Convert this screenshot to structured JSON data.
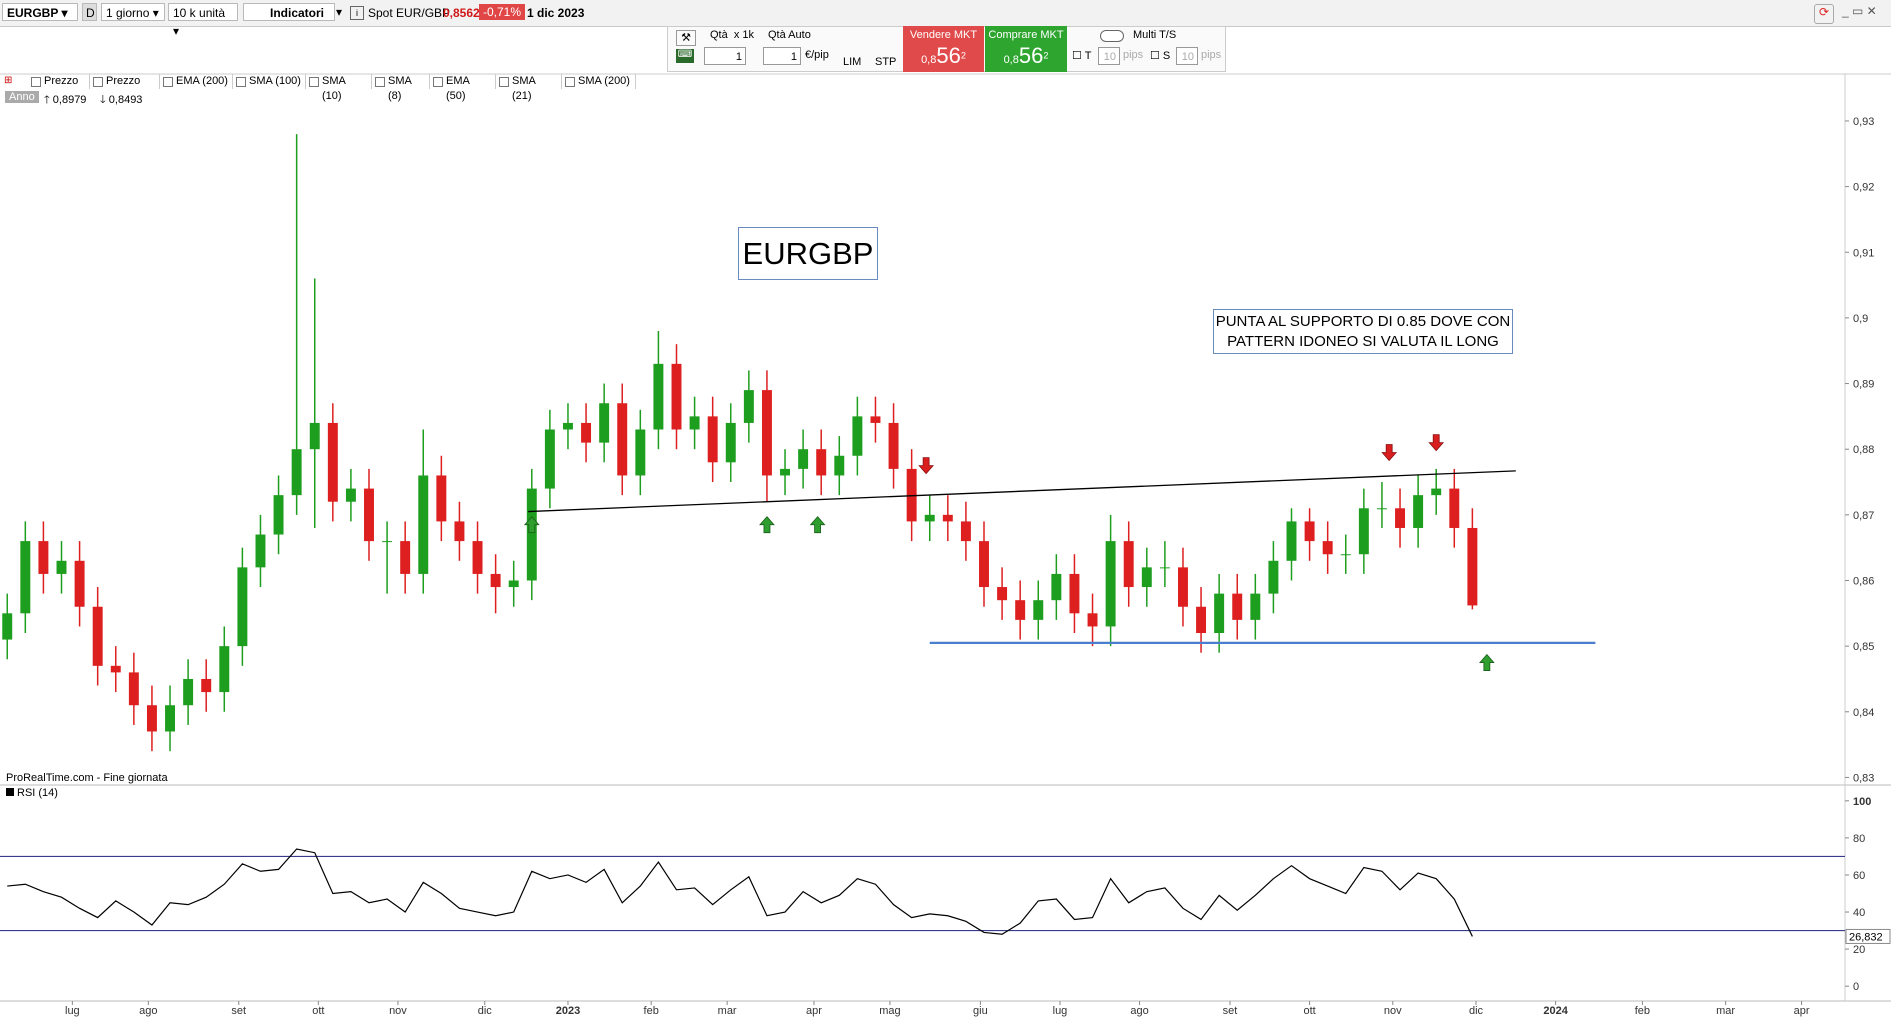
{
  "ui": {
    "symbol": "EURGBP",
    "d": "D",
    "timeframe": "1 giorno",
    "units": "10 k unità",
    "indicators": "Indicatori",
    "spot": "Spot EUR/GBP",
    "spot_price": "0,8562",
    "change": "-0,71%",
    "date": "1 dic 2023",
    "qty": "Qtà",
    "qty_mult": "x 1k",
    "qty_auto": "Qtà Auto",
    "qty_val": "1",
    "qty_auto_val": "1",
    "per_pip": "€/pip",
    "lim": "LIM",
    "stp": "STP",
    "sell": "Vendere MKT",
    "buy": "Comprare MKT",
    "quote_big_prefix": "0,8",
    "quote_big": "56",
    "quote_sup": "2",
    "multi": "Multi T/S",
    "t": "T",
    "s": "S",
    "pips_val": "10",
    "pips": "pips",
    "legend": [
      "Prezzo",
      "Prezzo",
      "EMA (200)",
      "SMA (100)",
      "SMA (10)",
      "SMA (8)",
      "EMA (50)",
      "SMA (21)",
      "SMA (200)"
    ],
    "period": "Anno",
    "high_label": "0,8979",
    "low_label": "0,8493",
    "source": "ProRealTime.com - Fine giornata"
  },
  "chart_data": [
    {
      "type": "candlestick",
      "up_color": "#1e9e1e",
      "down_color": "#dd1f1f",
      "x": [
        2,
        7,
        12,
        17,
        22,
        27,
        32,
        37,
        42,
        47,
        52,
        57,
        62,
        67,
        72,
        77,
        82,
        87,
        92,
        97,
        102,
        107,
        112,
        117,
        122,
        127,
        132,
        137,
        142,
        147,
        152,
        157,
        162,
        167,
        172,
        177,
        182,
        187,
        192,
        197,
        202,
        207,
        212,
        217,
        222,
        227,
        232,
        237,
        242,
        247,
        252,
        257,
        262,
        267,
        272,
        277,
        282,
        287,
        292,
        297,
        302,
        307,
        312,
        317,
        322,
        327,
        332,
        337,
        342,
        347,
        352,
        357,
        362,
        367,
        372,
        377,
        382,
        387,
        392,
        397,
        402,
        407
      ],
      "open": [
        0.851,
        0.855,
        0.866,
        0.861,
        0.863,
        0.856,
        0.847,
        0.846,
        0.841,
        0.837,
        0.841,
        0.845,
        0.843,
        0.85,
        0.862,
        0.867,
        0.873,
        0.88,
        0.884,
        0.872,
        0.874,
        0.866,
        0.866,
        0.861,
        0.876,
        0.869,
        0.866,
        0.861,
        0.859,
        0.86,
        0.874,
        0.883,
        0.884,
        0.881,
        0.887,
        0.876,
        0.883,
        0.893,
        0.883,
        0.885,
        0.878,
        0.884,
        0.889,
        0.876,
        0.877,
        0.88,
        0.876,
        0.879,
        0.885,
        0.884,
        0.877,
        0.869,
        0.87,
        0.869,
        0.866,
        0.859,
        0.857,
        0.854,
        0.857,
        0.861,
        0.855,
        0.853,
        0.866,
        0.859,
        0.862,
        0.862,
        0.856,
        0.852,
        0.858,
        0.854,
        0.858,
        0.863,
        0.869,
        0.866,
        0.864,
        0.864,
        0.871,
        0.871,
        0.868,
        0.873,
        0.874,
        0.868
      ],
      "high": [
        0.858,
        0.869,
        0.869,
        0.866,
        0.866,
        0.859,
        0.85,
        0.849,
        0.844,
        0.844,
        0.848,
        0.848,
        0.853,
        0.865,
        0.87,
        0.876,
        0.928,
        0.906,
        0.887,
        0.877,
        0.877,
        0.869,
        0.869,
        0.883,
        0.879,
        0.872,
        0.869,
        0.864,
        0.863,
        0.877,
        0.886,
        0.887,
        0.887,
        0.89,
        0.89,
        0.886,
        0.898,
        0.896,
        0.888,
        0.888,
        0.887,
        0.892,
        0.892,
        0.88,
        0.883,
        0.883,
        0.882,
        0.888,
        0.888,
        0.887,
        0.88,
        0.873,
        0.873,
        0.872,
        0.869,
        0.862,
        0.86,
        0.86,
        0.864,
        0.864,
        0.858,
        0.87,
        0.869,
        0.865,
        0.866,
        0.865,
        0.859,
        0.861,
        0.861,
        0.861,
        0.866,
        0.871,
        0.871,
        0.869,
        0.867,
        0.874,
        0.875,
        0.874,
        0.876,
        0.877,
        0.877,
        0.871
      ],
      "low": [
        0.848,
        0.852,
        0.858,
        0.858,
        0.853,
        0.844,
        0.843,
        0.838,
        0.834,
        0.834,
        0.838,
        0.84,
        0.84,
        0.847,
        0.859,
        0.864,
        0.87,
        0.868,
        0.869,
        0.869,
        0.863,
        0.858,
        0.858,
        0.858,
        0.866,
        0.863,
        0.858,
        0.855,
        0.856,
        0.857,
        0.871,
        0.88,
        0.878,
        0.878,
        0.873,
        0.873,
        0.88,
        0.88,
        0.88,
        0.875,
        0.875,
        0.881,
        0.872,
        0.873,
        0.874,
        0.873,
        0.873,
        0.876,
        0.881,
        0.874,
        0.866,
        0.866,
        0.866,
        0.863,
        0.856,
        0.854,
        0.851,
        0.851,
        0.854,
        0.852,
        0.85,
        0.85,
        0.856,
        0.856,
        0.859,
        0.853,
        0.849,
        0.849,
        0.851,
        0.851,
        0.855,
        0.86,
        0.863,
        0.861,
        0.861,
        0.861,
        0.868,
        0.865,
        0.865,
        0.87,
        0.865,
        0.8556
      ],
      "close": [
        0.855,
        0.866,
        0.861,
        0.863,
        0.856,
        0.847,
        0.846,
        0.841,
        0.837,
        0.841,
        0.845,
        0.843,
        0.85,
        0.862,
        0.867,
        0.873,
        0.88,
        0.884,
        0.872,
        0.874,
        0.866,
        0.866,
        0.861,
        0.876,
        0.869,
        0.866,
        0.861,
        0.859,
        0.86,
        0.874,
        0.883,
        0.884,
        0.881,
        0.887,
        0.876,
        0.883,
        0.893,
        0.883,
        0.885,
        0.878,
        0.884,
        0.889,
        0.876,
        0.877,
        0.88,
        0.876,
        0.879,
        0.885,
        0.884,
        0.877,
        0.869,
        0.87,
        0.869,
        0.866,
        0.859,
        0.857,
        0.854,
        0.857,
        0.861,
        0.855,
        0.853,
        0.866,
        0.859,
        0.862,
        0.862,
        0.856,
        0.852,
        0.858,
        0.854,
        0.858,
        0.863,
        0.869,
        0.866,
        0.864,
        0.864,
        0.871,
        0.871,
        0.868,
        0.873,
        0.874,
        0.868,
        0.8562
      ],
      "xlim": [
        0,
        510
      ],
      "ylim": [
        0.829,
        0.937
      ],
      "yticks": [
        {
          "value": 0.93,
          "label": "0,93"
        },
        {
          "value": 0.92,
          "label": "0,92"
        },
        {
          "value": 0.91,
          "label": "0,91"
        },
        {
          "value": 0.9,
          "label": "0,9"
        },
        {
          "value": 0.89,
          "label": "0,89"
        },
        {
          "value": 0.88,
          "label": "0,88"
        },
        {
          "value": 0.87,
          "label": "0,87"
        },
        {
          "value": 0.86,
          "label": "0,86"
        },
        {
          "value": 0.85,
          "label": "0,85"
        },
        {
          "value": 0.84,
          "label": "0,84"
        },
        {
          "value": 0.83,
          "label": "0,83"
        }
      ],
      "lines": [
        {
          "x": [
            146,
            419
          ],
          "y": [
            0.8705,
            0.8767
          ],
          "color": "#000000"
        },
        {
          "x": [
            257,
            441
          ],
          "y": [
            0.8505,
            0.8505
          ],
          "color": "#4a7fd0"
        }
      ],
      "arrows": [
        {
          "x": 147,
          "y": 0.8685,
          "dir": "up"
        },
        {
          "x": 212,
          "y": 0.8685,
          "dir": "up"
        },
        {
          "x": 226,
          "y": 0.8685,
          "dir": "up"
        },
        {
          "x": 411,
          "y": 0.8475,
          "dir": "up"
        },
        {
          "x": 256,
          "y": 0.8775,
          "dir": "down"
        },
        {
          "x": 384,
          "y": 0.8795,
          "dir": "down"
        },
        {
          "x": 397,
          "y": 0.881,
          "dir": "down"
        }
      ],
      "annotations": [
        {
          "lines": [
            "EURGBP"
          ]
        },
        {
          "lines": [
            "PUNTA AL SUPPORTO DI 0.85 DOVE CON",
            "PATTERN IDONEO SI VALUTA IL LONG"
          ]
        }
      ]
    },
    {
      "type": "line",
      "title": "RSI (14)",
      "color": "#000000",
      "level_color": "#3a3a8c",
      "x": [
        2,
        7,
        12,
        17,
        22,
        27,
        32,
        37,
        42,
        47,
        52,
        57,
        62,
        67,
        72,
        77,
        82,
        87,
        92,
        97,
        102,
        107,
        112,
        117,
        122,
        127,
        132,
        137,
        142,
        147,
        152,
        157,
        162,
        167,
        172,
        177,
        182,
        187,
        192,
        197,
        202,
        207,
        212,
        217,
        222,
        227,
        232,
        237,
        242,
        247,
        252,
        257,
        262,
        267,
        272,
        277,
        282,
        287,
        292,
        297,
        302,
        307,
        312,
        317,
        322,
        327,
        332,
        337,
        342,
        347,
        352,
        357,
        362,
        367,
        372,
        377,
        382,
        387,
        392,
        397,
        402,
        407
      ],
      "values": [
        54,
        55,
        51,
        48,
        42,
        37,
        46,
        40,
        33,
        45,
        44,
        48,
        55,
        66,
        62,
        63,
        74,
        72,
        50,
        51,
        45,
        47,
        40,
        56,
        50,
        42,
        40,
        38,
        40,
        62,
        58,
        60,
        56,
        63,
        45,
        54,
        67,
        52,
        53,
        44,
        52,
        59,
        38,
        40,
        51,
        45,
        49,
        58,
        55,
        44,
        37,
        39,
        38,
        35,
        29,
        28,
        34,
        46,
        47,
        36,
        37,
        58,
        45,
        51,
        53,
        42,
        36,
        49,
        41,
        49,
        58,
        65,
        58,
        54,
        50,
        64,
        62,
        52,
        61,
        58,
        47,
        26.832
      ],
      "last_label": "26,832",
      "levels": [
        70,
        30
      ],
      "xlim": [
        0,
        510
      ],
      "ylim": [
        -8,
        108
      ],
      "yticks": [
        100,
        80,
        60,
        40,
        20,
        0
      ],
      "xticks": [
        {
          "value": 20,
          "label": "lug"
        },
        {
          "value": 41,
          "label": "ago"
        },
        {
          "value": 66,
          "label": "set"
        },
        {
          "value": 88,
          "label": "ott"
        },
        {
          "value": 110,
          "label": "nov"
        },
        {
          "value": 134,
          "label": "dic"
        },
        {
          "value": 157,
          "label": "2023"
        },
        {
          "value": 180,
          "label": "feb"
        },
        {
          "value": 201,
          "label": "mar"
        },
        {
          "value": 225,
          "label": "apr"
        },
        {
          "value": 246,
          "label": "mag"
        },
        {
          "value": 271,
          "label": "giu"
        },
        {
          "value": 293,
          "label": "lug"
        },
        {
          "value": 315,
          "label": "ago"
        },
        {
          "value": 340,
          "label": "set"
        },
        {
          "value": 362,
          "label": "ott"
        },
        {
          "value": 385,
          "label": "nov"
        },
        {
          "value": 408,
          "label": "dic"
        },
        {
          "value": 430,
          "label": "2024"
        },
        {
          "value": 454,
          "label": "feb"
        },
        {
          "value": 477,
          "label": "mar"
        },
        {
          "value": 498,
          "label": "apr"
        }
      ]
    }
  ]
}
